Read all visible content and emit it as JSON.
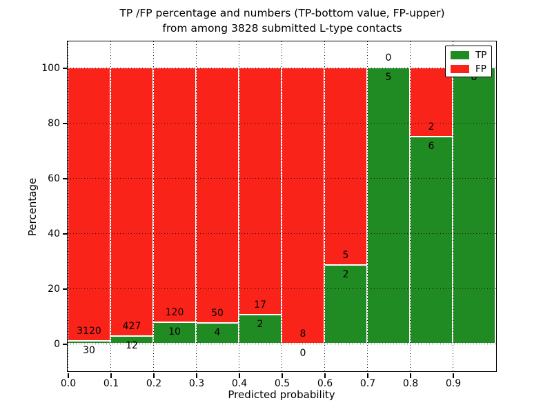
{
  "title": {
    "line1": "TP /FP percentage and numbers (TP-bottom value, FP-upper)",
    "line2": "from among 3828 submitted L-type contacts"
  },
  "axes": {
    "xlabel": "Predicted probability",
    "ylabel": "Percentage",
    "xtick_labels": [
      "0.0",
      "0.1",
      "0.2",
      "0.3",
      "0.4",
      "0.5",
      "0.6",
      "0.7",
      "0.8",
      "0.9"
    ],
    "ytick_values": [
      0,
      20,
      40,
      60,
      80,
      100
    ],
    "grid_style": "dotted"
  },
  "colors": {
    "tp": "#208b22",
    "fp": "#fa2319",
    "background": "#ffffff",
    "frame": "#000000"
  },
  "legend": {
    "position": "upper right",
    "entries": [
      {
        "label": "TP",
        "color": "#208b22"
      },
      {
        "label": "FP",
        "color": "#fa2319"
      }
    ]
  },
  "chart_data": {
    "type": "bar",
    "stacked": true,
    "normalized": "each bin scaled to 100%",
    "title": "TP /FP percentage and numbers (TP-bottom value, FP-upper) from among 3828 submitted L-type contacts",
    "xlabel": "Predicted probability",
    "ylabel": "Percentage",
    "total_contacts": 3828,
    "categories": [
      "0.0",
      "0.1",
      "0.2",
      "0.3",
      "0.4",
      "0.5",
      "0.6",
      "0.7",
      "0.8",
      "0.9"
    ],
    "bin_width": 0.1,
    "series": [
      {
        "name": "TP",
        "color": "#208b22",
        "counts": [
          30,
          12,
          10,
          4,
          2,
          0,
          2,
          5,
          6,
          8
        ],
        "percent": [
          0.95,
          2.73,
          7.69,
          7.41,
          10.53,
          0.0,
          28.57,
          100.0,
          75.0,
          100.0
        ]
      },
      {
        "name": "FP",
        "color": "#fa2319",
        "counts": [
          3120,
          427,
          120,
          50,
          17,
          8,
          5,
          0,
          2,
          0
        ],
        "percent": [
          99.05,
          97.27,
          92.31,
          92.59,
          89.47,
          100.0,
          71.43,
          0.0,
          25.0,
          0.0
        ]
      }
    ],
    "ylim": [
      -10,
      109.5
    ],
    "yticks": [
      0,
      20,
      40,
      60,
      80,
      100
    ],
    "grid": true,
    "legend_position": "upper right"
  }
}
